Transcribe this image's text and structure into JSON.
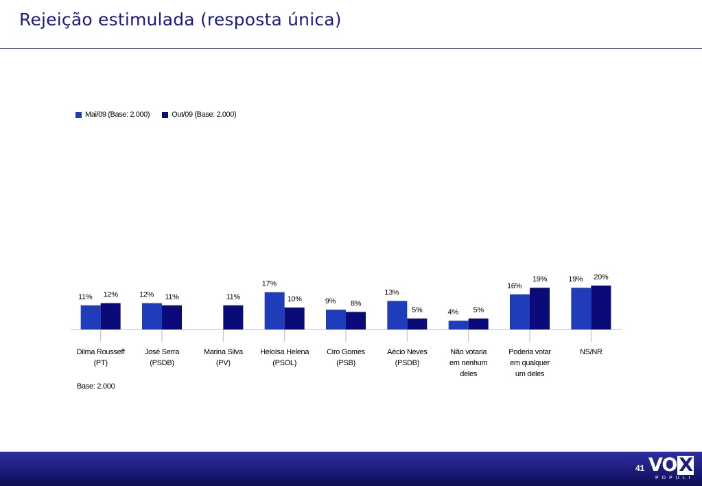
{
  "slide": {
    "title": "Rejeição estimulada (resposta única)",
    "base_note": "Base: 2.000",
    "page_number": "41",
    "logo": {
      "main_text": "VO",
      "x_text": "X",
      "sub_text": "POPULI"
    }
  },
  "colors": {
    "title": "#1a1a8c",
    "series_1": "#1f3dbb",
    "series_2": "#0a0a78",
    "footer": "#1c1c7a"
  },
  "chart_data": {
    "type": "bar",
    "title": "Rejeição estimulada (resposta única)",
    "categories": [
      [
        "Dilma Rousseff",
        "(PT)"
      ],
      [
        "José Serra",
        "(PSDB)"
      ],
      [
        "Marina Silva",
        "(PV)"
      ],
      [
        "Heloísa Helena",
        "(PSOL)"
      ],
      [
        "Ciro Gomes",
        "(PSB)"
      ],
      [
        "Aécio Neves",
        "(PSDB)"
      ],
      [
        "Não votaria",
        "em nenhum",
        "deles"
      ],
      [
        "Poderia votar",
        "em qualquer",
        "um deles"
      ],
      [
        "NS/NR"
      ]
    ],
    "series": [
      {
        "name": "Mai/09 (Base: 2.000)",
        "values": [
          11,
          12,
          null,
          17,
          9,
          13,
          4,
          16,
          19
        ]
      },
      {
        "name": "Out/09 (Base: 2.000)",
        "values": [
          12,
          11,
          11,
          10,
          8,
          5,
          5,
          19,
          20
        ]
      }
    ],
    "value_suffix": "%",
    "ylim": [
      0,
      20
    ],
    "grid": false,
    "legend": "top-left"
  }
}
